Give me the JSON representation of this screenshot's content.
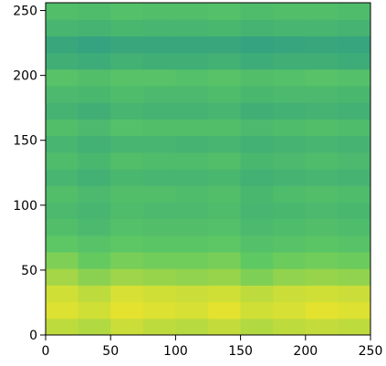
{
  "chart_data": {
    "type": "heatmap",
    "xlim": [
      0,
      250
    ],
    "ylim": [
      0,
      256
    ],
    "xticks": [
      0,
      50,
      100,
      150,
      200,
      250
    ],
    "yticks": [
      0,
      50,
      100,
      150,
      200,
      250
    ],
    "x_edges": [
      0,
      25,
      50,
      75,
      100,
      125,
      150,
      175,
      200,
      225,
      250
    ],
    "y_edges": [
      0,
      12.8,
      25.6,
      38.4,
      51.2,
      64,
      76.8,
      89.6,
      102.4,
      115.2,
      128,
      140.8,
      153.6,
      166.4,
      179.2,
      192,
      204.8,
      217.6,
      230.4,
      243.2,
      256
    ],
    "clim": [
      0,
      1
    ],
    "colormap": [
      "#440154",
      "#3b528b",
      "#21918c",
      "#5ec962",
      "#fde725"
    ],
    "z": [
      [
        0.9,
        0.88,
        0.92,
        0.9,
        0.89,
        0.91,
        0.88,
        0.9,
        0.91,
        0.9
      ],
      [
        0.95,
        0.93,
        0.96,
        0.95,
        0.94,
        0.96,
        0.93,
        0.94,
        0.96,
        0.95
      ],
      [
        0.93,
        0.9,
        0.94,
        0.93,
        0.92,
        0.93,
        0.9,
        0.92,
        0.93,
        0.92
      ],
      [
        0.86,
        0.82,
        0.85,
        0.84,
        0.83,
        0.84,
        0.8,
        0.83,
        0.84,
        0.83
      ],
      [
        0.8,
        0.76,
        0.79,
        0.78,
        0.78,
        0.79,
        0.75,
        0.77,
        0.78,
        0.77
      ],
      [
        0.74,
        0.72,
        0.74,
        0.73,
        0.73,
        0.74,
        0.71,
        0.72,
        0.73,
        0.72
      ],
      [
        0.7,
        0.68,
        0.71,
        0.7,
        0.7,
        0.71,
        0.68,
        0.69,
        0.7,
        0.69
      ],
      [
        0.68,
        0.66,
        0.69,
        0.68,
        0.68,
        0.69,
        0.66,
        0.67,
        0.68,
        0.67
      ],
      [
        0.7,
        0.68,
        0.7,
        0.7,
        0.69,
        0.7,
        0.67,
        0.69,
        0.7,
        0.69
      ],
      [
        0.66,
        0.64,
        0.67,
        0.66,
        0.66,
        0.67,
        0.64,
        0.65,
        0.66,
        0.65
      ],
      [
        0.69,
        0.67,
        0.7,
        0.69,
        0.69,
        0.7,
        0.67,
        0.68,
        0.69,
        0.68
      ],
      [
        0.66,
        0.64,
        0.66,
        0.66,
        0.65,
        0.66,
        0.64,
        0.65,
        0.66,
        0.65
      ],
      [
        0.7,
        0.68,
        0.71,
        0.7,
        0.7,
        0.7,
        0.68,
        0.69,
        0.7,
        0.69
      ],
      [
        0.65,
        0.63,
        0.66,
        0.65,
        0.65,
        0.66,
        0.63,
        0.64,
        0.65,
        0.64
      ],
      [
        0.68,
        0.67,
        0.69,
        0.68,
        0.68,
        0.69,
        0.67,
        0.68,
        0.68,
        0.67
      ],
      [
        0.72,
        0.7,
        0.72,
        0.72,
        0.71,
        0.72,
        0.7,
        0.71,
        0.72,
        0.71
      ],
      [
        0.63,
        0.62,
        0.64,
        0.63,
        0.63,
        0.64,
        0.62,
        0.63,
        0.63,
        0.62
      ],
      [
        0.6,
        0.58,
        0.6,
        0.6,
        0.6,
        0.6,
        0.58,
        0.59,
        0.6,
        0.59
      ],
      [
        0.66,
        0.65,
        0.67,
        0.66,
        0.66,
        0.67,
        0.65,
        0.66,
        0.66,
        0.65
      ],
      [
        0.7,
        0.69,
        0.71,
        0.7,
        0.7,
        0.71,
        0.69,
        0.7,
        0.7,
        0.69
      ]
    ]
  }
}
